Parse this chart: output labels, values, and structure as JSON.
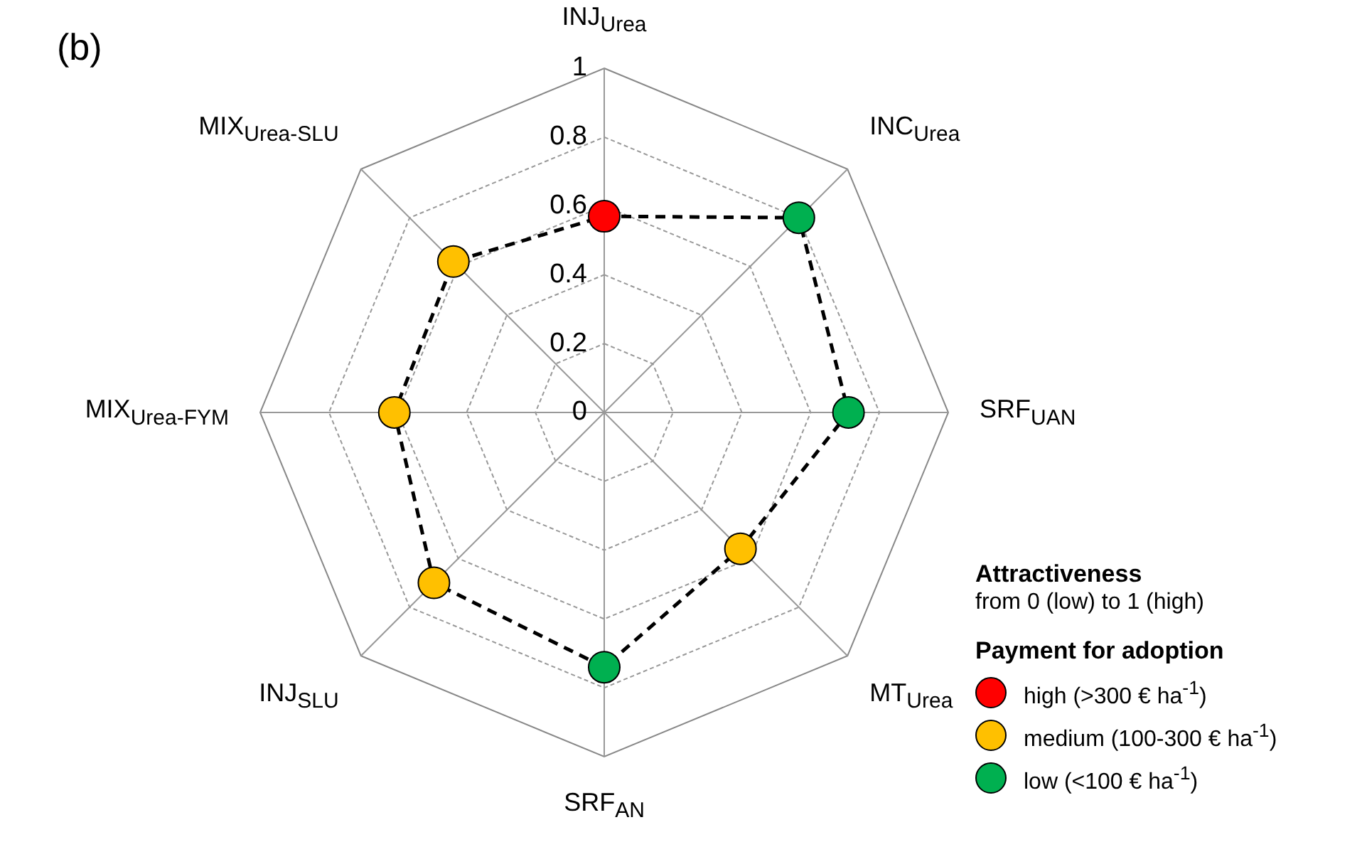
{
  "chart_data": {
    "type": "radar",
    "title": "(b)",
    "categories": [
      "INJ$_{Urea}$",
      "INC$_{Urea}$",
      "SRF$_{UAN}$",
      "MT$_{Urea}$",
      "SRF$_{AN}$",
      "INJ$_{SLU}$",
      "MIX$_{Urea-FYM}$",
      "MIX$_{Urea-SLU}$"
    ],
    "series": [
      {
        "color": "#000000",
        "colors": [
          "#ff0000",
          "#00b050",
          "#00b050",
          "#ffc000",
          "#00b050",
          "#ffc000",
          "#ffc000",
          "#ffc000"
        ],
        "line_style": "dashed",
        "marker": "circle",
        "values": [
          0.57,
          0.8,
          0.71,
          0.56,
          0.74,
          0.7,
          0.61,
          0.62
        ]
      },
      {
        "name": "high (>300 € ha$^{-1}$)",
        "color": "#ff0000",
        "values": [
          null,
          null,
          null,
          null,
          null,
          null,
          null,
          null
        ]
      },
      {
        "name": "medium (100-300 € ha$^{-1}$)",
        "color": "#ffc000",
        "values": [
          null,
          null,
          null,
          null,
          null,
          null,
          null,
          null
        ]
      },
      {
        "name": "low (<100 € ha$^{-1}$)",
        "color": "#00b050",
        "values": [
          null,
          null,
          null,
          null,
          null,
          null,
          null,
          null
        ]
      }
    ],
    "ylim": [
      0,
      1
    ],
    "yticks": [
      0,
      0.2,
      0.4,
      0.6,
      0.8,
      1
    ],
    "grid": true,
    "legend": "bottom right",
    "legend_title": "Payment for adoption",
    "annotations": [
      "Attractiveness",
      "from 0 (low) to 1 (high)"
    ]
  }
}
